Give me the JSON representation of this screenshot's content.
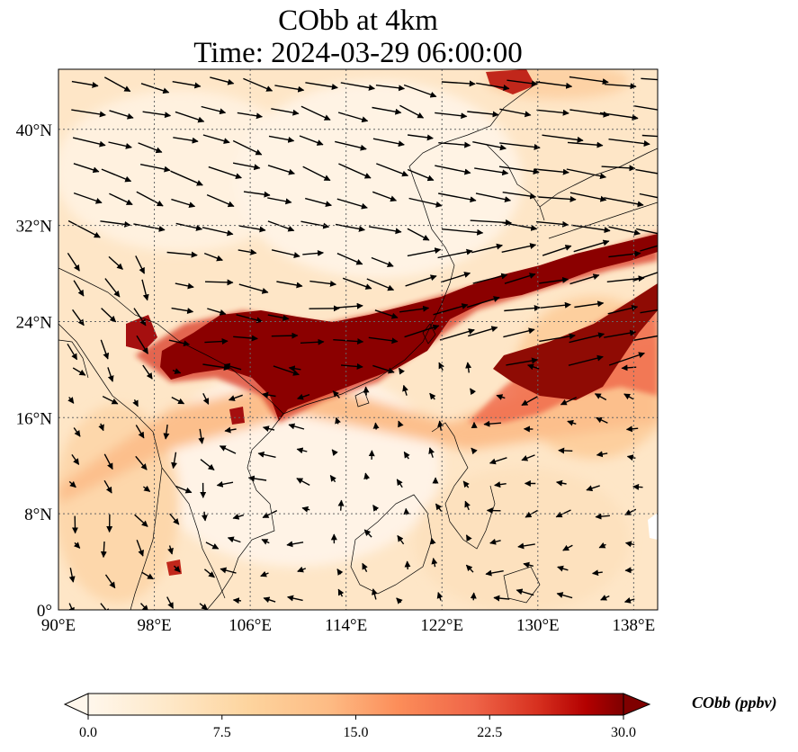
{
  "title": {
    "line1": "CObb at 4km",
    "line2": "Time: 2024-03-29 06:00:00"
  },
  "map": {
    "lon_range": [
      90,
      140
    ],
    "lat_range": [
      0,
      45
    ],
    "x_ticks": [
      "90°E",
      "98°E",
      "106°E",
      "114°E",
      "122°E",
      "130°E",
      "138°E"
    ],
    "y_ticks": [
      "0°",
      "8°N",
      "16°N",
      "24°N",
      "32°N",
      "40°N"
    ],
    "gridlines": true
  },
  "colorbar": {
    "label": "CObb (ppbv)",
    "ticks": [
      "0.0",
      "7.5",
      "15.0",
      "22.5",
      "30.0"
    ],
    "colormap": "OrRd",
    "extend": "both"
  },
  "colors": {
    "low": "#fff7ec",
    "mid": "#fdbb84",
    "high": "#d7301f",
    "max": "#7f0000"
  }
}
